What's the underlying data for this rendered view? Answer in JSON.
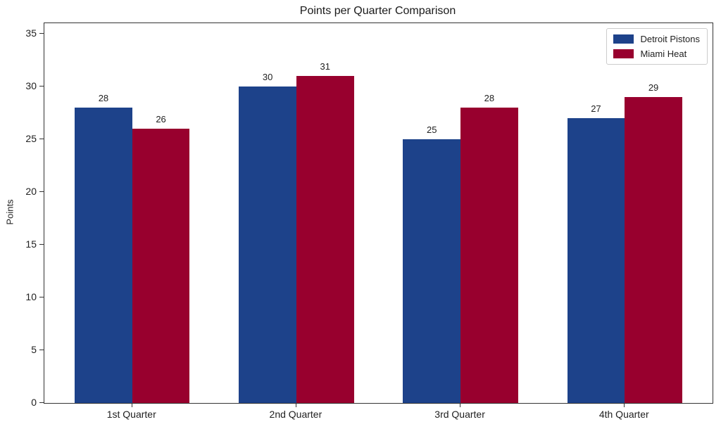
{
  "chart_data": {
    "type": "bar",
    "title": "Points per Quarter Comparison",
    "xlabel": "",
    "ylabel": "Points",
    "categories": [
      "1st Quarter",
      "2nd Quarter",
      "3rd Quarter",
      "4th Quarter"
    ],
    "series": [
      {
        "name": "Detroit Pistons",
        "color": "#1d428a",
        "values": [
          28,
          30,
          25,
          27
        ]
      },
      {
        "name": "Miami Heat",
        "color": "#98002e",
        "values": [
          26,
          31,
          28,
          29
        ]
      }
    ],
    "yticks": [
      0,
      5,
      10,
      15,
      20,
      25,
      30,
      35
    ],
    "ylim": [
      0,
      36
    ],
    "grid": false,
    "legend_position": "upper right",
    "bar_value_labels": true,
    "colors": {
      "axis": "#333333",
      "text": "#212121",
      "legend_border": "#cccccc",
      "background": "#ffffff"
    }
  }
}
